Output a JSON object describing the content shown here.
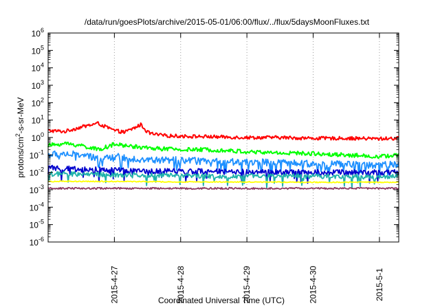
{
  "chart_data": {
    "type": "line",
    "title": "/data/run/goesPlots/archive/2015-05-01/06:00/flux/../flux/5daysMoonFluxes.txt",
    "xlabel": "Coordinated Universal Time (UTC)",
    "ylabel": {
      "prefix": "protons/cm",
      "sup": "2",
      "suffix": "-s-sr-MeV"
    },
    "x_ticks": [
      "2015-4-27",
      "2015-4-28",
      "2015-4-29",
      "2015-4-30",
      "2015-5-1"
    ],
    "x_range": [
      "2015-04-26 00:00",
      "2015-05-01 07:00"
    ],
    "y_scale": "log",
    "y_ticks": [
      {
        "base": "10",
        "exp": "-6"
      },
      {
        "base": "10",
        "exp": "-5"
      },
      {
        "base": "10",
        "exp": "-4"
      },
      {
        "base": "10",
        "exp": "-3"
      },
      {
        "base": "10",
        "exp": "-2"
      },
      {
        "base": "10",
        "exp": "-1"
      },
      {
        "base": "10",
        "exp": "0"
      },
      {
        "base": "10",
        "exp": "1"
      },
      {
        "base": "10",
        "exp": "2"
      },
      {
        "base": "10",
        "exp": "3"
      },
      {
        "base": "10",
        "exp": "4"
      },
      {
        "base": "10",
        "exp": "5"
      },
      {
        "base": "10",
        "exp": "6"
      }
    ],
    "ylim": [
      1e-06,
      1000000.0
    ],
    "grid": true,
    "series": [
      {
        "color": "#ff0000",
        "x_days": [
          0,
          0.25,
          0.5,
          0.75,
          1.0,
          1.15,
          1.3,
          1.4,
          1.5,
          1.6,
          1.75,
          2.0,
          2.5,
          3.0,
          3.5,
          4.0,
          4.5,
          5.0,
          5.29
        ],
        "values": [
          2.5,
          2.2,
          4.0,
          6.5,
          2.5,
          2.0,
          3.5,
          5.5,
          2.0,
          1.5,
          1.3,
          1.2,
          1.1,
          1.0,
          1.0,
          0.9,
          0.9,
          0.85,
          0.9
        ]
      },
      {
        "color": "#00ff00",
        "x_days": [
          0,
          0.25,
          0.5,
          0.75,
          1.0,
          1.5,
          2.0,
          2.5,
          3.0,
          3.5,
          4.0,
          4.5,
          5.0,
          5.29
        ],
        "values": [
          0.35,
          0.45,
          0.35,
          0.2,
          0.4,
          0.25,
          0.2,
          0.2,
          0.15,
          0.13,
          0.12,
          0.1,
          0.08,
          0.1
        ]
      },
      {
        "color": "#1e90ff",
        "x_days": [
          0,
          0.25,
          0.5,
          0.75,
          1.0,
          1.5,
          2.0,
          2.5,
          3.0,
          3.5,
          4.0,
          4.5,
          5.0,
          5.29
        ],
        "values": [
          0.1,
          0.12,
          0.1,
          0.06,
          0.08,
          0.05,
          0.05,
          0.04,
          0.04,
          0.035,
          0.03,
          0.03,
          0.025,
          0.03
        ]
      },
      {
        "color": "#0000cd",
        "x_days": [
          0,
          0.5,
          1.0,
          1.5,
          2.0,
          2.5,
          3.0,
          3.5,
          4.0,
          4.5,
          5.0,
          5.29
        ],
        "values": [
          0.018,
          0.015,
          0.013,
          0.012,
          0.012,
          0.011,
          0.011,
          0.01,
          0.01,
          0.01,
          0.01,
          0.01
        ]
      },
      {
        "color": "#20b2aa",
        "x_days": [
          0,
          0.5,
          1.0,
          1.5,
          2.0,
          2.5,
          3.0,
          3.5,
          4.0,
          4.5,
          5.0,
          5.29
        ],
        "values": [
          0.008,
          0.008,
          0.007,
          0.007,
          0.007,
          0.006,
          0.006,
          0.006,
          0.006,
          0.006,
          0.005,
          0.006
        ]
      },
      {
        "color": "#ffff00",
        "x_days": [
          0,
          1.0,
          2.0,
          3.0,
          4.0,
          5.0,
          5.29
        ],
        "values": [
          0.003,
          0.003,
          0.0028,
          0.0028,
          0.0027,
          0.0027,
          0.0027
        ]
      },
      {
        "color": "#8b3a62",
        "x_days": [
          0,
          1.0,
          2.0,
          3.0,
          4.0,
          5.0,
          5.29
        ],
        "values": [
          0.0012,
          0.0012,
          0.0012,
          0.0012,
          0.0012,
          0.0012,
          0.0012
        ]
      }
    ]
  }
}
